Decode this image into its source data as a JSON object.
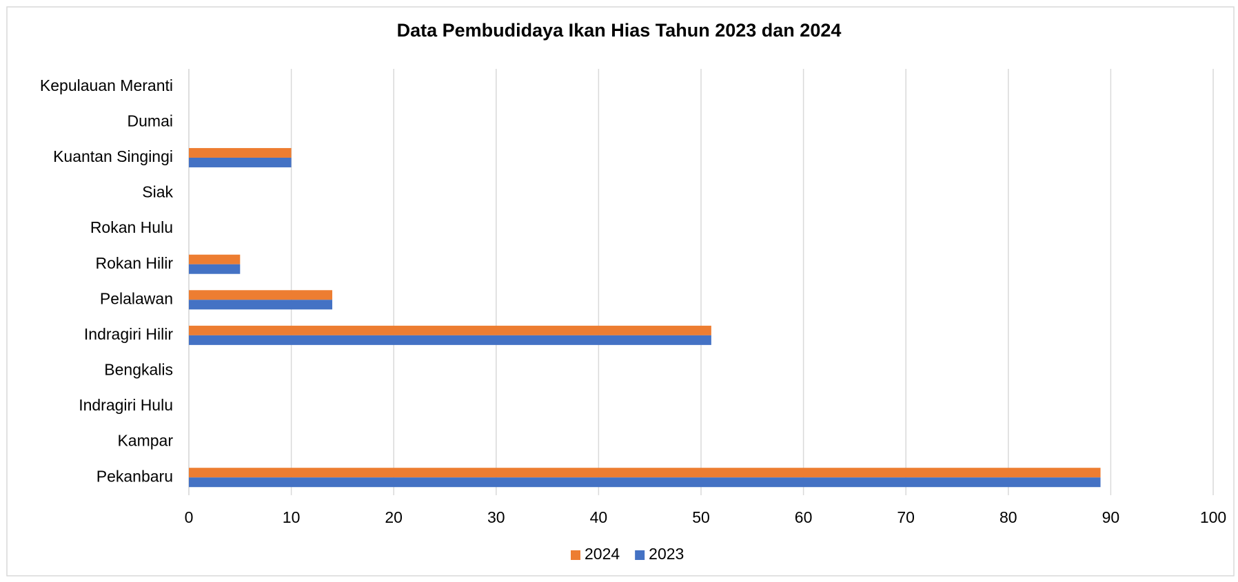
{
  "chart_data": {
    "type": "hbar",
    "title": "Data Pembudidaya Ikan Hias Tahun 2023 dan 2024",
    "categories": [
      "Pekanbaru",
      "Kampar",
      "Indragiri Hulu",
      "Bengkalis",
      "Indragiri Hilir",
      "Pelalawan",
      "Rokan Hilir",
      "Rokan Hulu",
      "Siak",
      "Kuantan Singingi",
      "Dumai",
      "Kepulauan Meranti"
    ],
    "series": [
      {
        "name": "2024",
        "color": "#ed7d31",
        "values": [
          89,
          0,
          0,
          0,
          51,
          14,
          5,
          0,
          0,
          10,
          0,
          0
        ]
      },
      {
        "name": "2023",
        "color": "#4472c4",
        "values": [
          89,
          0,
          0,
          0,
          51,
          14,
          5,
          0,
          0,
          10,
          0,
          0
        ]
      }
    ],
    "xlim": [
      0,
      100
    ],
    "xticks": [
      0,
      10,
      20,
      30,
      40,
      50,
      60,
      70,
      80,
      90,
      100
    ],
    "grid": true,
    "legend": "bottom"
  }
}
